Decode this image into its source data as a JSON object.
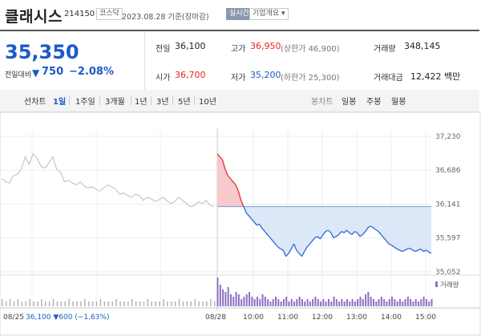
{
  "header": {
    "name": "클래시스",
    "code": "214150",
    "market": "코스닥",
    "date": "2023.08.28 기준(장마감)",
    "realtime_label": "실시간",
    "company_info_label": "기업개요 ▾"
  },
  "quote": {
    "price": "35,350",
    "change_label": "전일대비",
    "change_arrow": "▼",
    "change": "750",
    "change_pct": "−2.08%",
    "prev_close_label": "전일",
    "prev_close": "36,100",
    "open_label": "시가",
    "open": "36,700",
    "high_label": "고가",
    "high": "36,950",
    "upper_limit": "(상한가 46,900)",
    "low_label": "저가",
    "low": "35,200",
    "lower_limit": "(하한가 25,300)",
    "volume_label": "거래량",
    "volume": "348,145",
    "value_label": "거래대금",
    "value": "12,422 백만"
  },
  "tabs": {
    "line_chart": "선차트",
    "periods": [
      "1일",
      "1주일",
      "3개월",
      "1년",
      "3년",
      "5년",
      "10년"
    ],
    "selected_index": 0,
    "candle_chart": "봉차트",
    "candles": [
      "일봉",
      "주봉",
      "월봉"
    ]
  },
  "chart_data": {
    "type": "line",
    "y_ticks": [
      "37,230",
      "36,686",
      "36,141",
      "35,597",
      "35,052"
    ],
    "y_tick_values": [
      37230,
      36686,
      36141,
      35597,
      35052
    ],
    "ylim": [
      35052,
      37230
    ],
    "prev_close": 36100,
    "x_tick_labels": [
      "08/28",
      "10:00",
      "11:00",
      "12:00",
      "13:00",
      "14:00",
      "15:00"
    ],
    "prev_day_date": "08/25",
    "prev_day_summary": "36,100 ▼600 (−1.63%)",
    "volume_label": "거래량",
    "colors": {
      "prev_day_line": "#bcbcbc",
      "up_line": "#e0323b",
      "up_fill": "#f7c9cc",
      "down_line": "#2a67d6",
      "down_fill": "#dce7f8",
      "volume_bar": "#8d6fc4",
      "prev_volume_bar": "#b3b3b3",
      "prev_close_line": "#6b8ecf"
    },
    "prev_day_series": [
      36550,
      36500,
      36480,
      36600,
      36620,
      36700,
      36900,
      36780,
      36950,
      36880,
      36750,
      36720,
      36800,
      36900,
      36700,
      36650,
      36500,
      36520,
      36480,
      36450,
      36500,
      36430,
      36400,
      36420,
      36380,
      36350,
      36400,
      36450,
      36420,
      36380,
      36300,
      36320,
      36280,
      36250,
      36300,
      36280,
      36200,
      36250,
      36230,
      36180,
      36210,
      36250,
      36200,
      36150,
      36180,
      36250,
      36200,
      36150,
      36100,
      36120,
      36180,
      36150,
      36200,
      36120,
      36100
    ],
    "today_series": [
      36950,
      36900,
      36850,
      36700,
      36600,
      36550,
      36500,
      36450,
      36350,
      36200,
      36100,
      36000,
      35950,
      35900,
      35850,
      35800,
      35820,
      35750,
      35700,
      35650,
      35600,
      35550,
      35500,
      35450,
      35420,
      35400,
      35300,
      35350,
      35420,
      35500,
      35400,
      35350,
      35300,
      35380,
      35450,
      35500,
      35550,
      35600,
      35620,
      35580,
      35650,
      35700,
      35720,
      35680,
      35600,
      35620,
      35650,
      35700,
      35680,
      35720,
      35680,
      35650,
      35700,
      35680,
      35620,
      35650,
      35700,
      35760,
      35790,
      35760,
      35730,
      35700,
      35650,
      35600,
      35550,
      35500,
      35480,
      35450,
      35420,
      35400,
      35380,
      35400,
      35420,
      35430,
      35400,
      35380,
      35400,
      35420,
      35380,
      35400,
      35370,
      35350
    ],
    "volumes": [
      12,
      9,
      7,
      6,
      8,
      5,
      4,
      6,
      5,
      3,
      4,
      5,
      6,
      4,
      3,
      4,
      3,
      5,
      4,
      3,
      2,
      3,
      4,
      3,
      2,
      3,
      4,
      2,
      3,
      2,
      3,
      4,
      3,
      2,
      3,
      2,
      3,
      4,
      3,
      2,
      3,
      2,
      3,
      2,
      4,
      3,
      2,
      3,
      2,
      3,
      2,
      3,
      2,
      3,
      4,
      3,
      5,
      6,
      4,
      3,
      2,
      3,
      4,
      3,
      2,
      3,
      4,
      3,
      2,
      3,
      2,
      3,
      4,
      3,
      2,
      3,
      2,
      3,
      4,
      3,
      2,
      3
    ],
    "prev_volumes": [
      3,
      2,
      3,
      2,
      3,
      2,
      2,
      3,
      2,
      2,
      3,
      2,
      2,
      3,
      2,
      2,
      2,
      3,
      2,
      2,
      2,
      3,
      2,
      2,
      2,
      3,
      2,
      2,
      2,
      3,
      2,
      2,
      2,
      3,
      2,
      2,
      2,
      3,
      2,
      2,
      2,
      3,
      2,
      2,
      2,
      3,
      2,
      2,
      2,
      3,
      2,
      2,
      2,
      3,
      2
    ]
  }
}
